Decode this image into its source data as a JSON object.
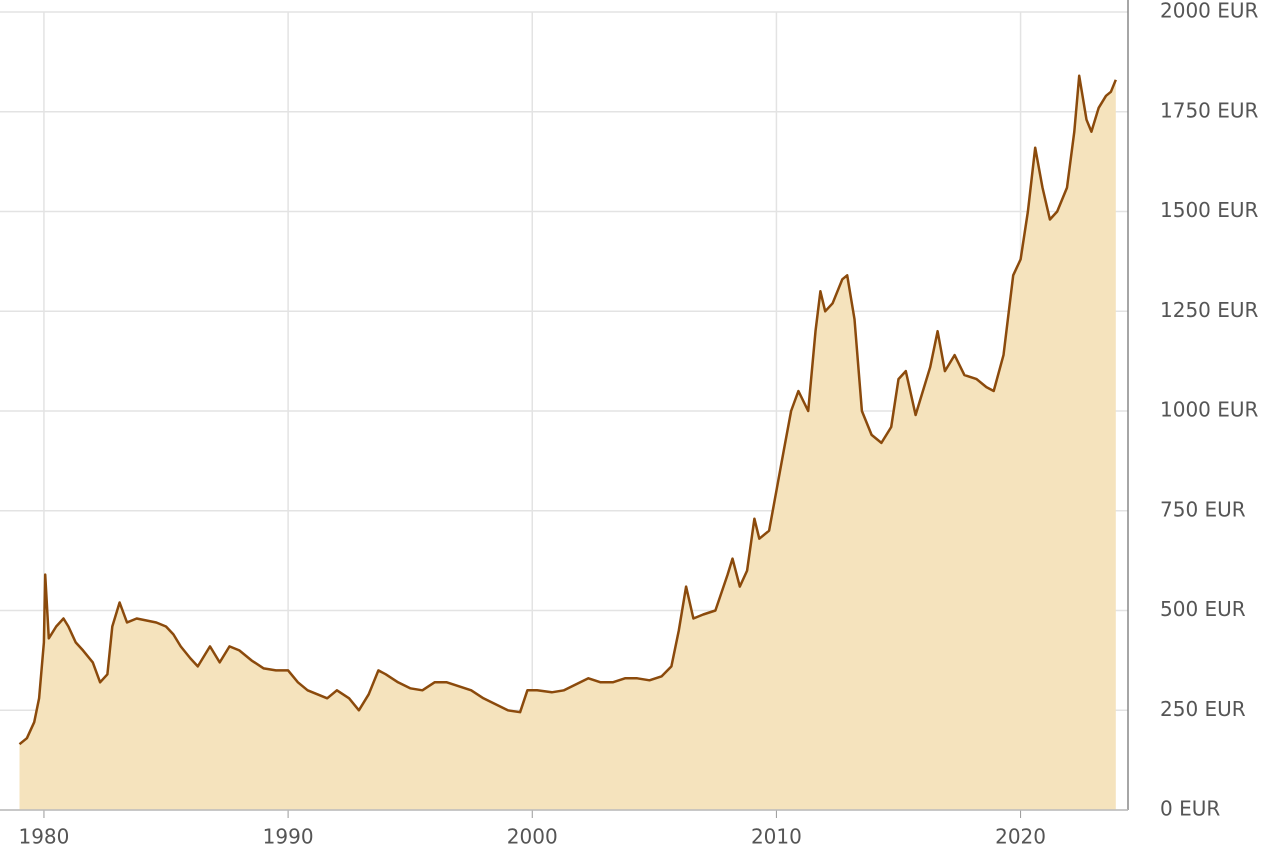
{
  "chart_data": {
    "type": "area",
    "x": [
      1979.0,
      1979.3,
      1979.6,
      1979.8,
      1980.0,
      1980.05,
      1980.2,
      1980.5,
      1980.8,
      1981.0,
      1981.3,
      1981.6,
      1982.0,
      1982.3,
      1982.6,
      1982.8,
      1983.1,
      1983.4,
      1983.8,
      1984.2,
      1984.6,
      1985.0,
      1985.3,
      1985.6,
      1986.0,
      1986.3,
      1986.8,
      1987.2,
      1987.6,
      1988.0,
      1988.5,
      1989.0,
      1989.5,
      1990.0,
      1990.4,
      1990.8,
      1991.2,
      1991.6,
      1992.0,
      1992.5,
      1992.9,
      1993.3,
      1993.7,
      1994.0,
      1994.5,
      1995.0,
      1995.5,
      1996.0,
      1996.5,
      1997.0,
      1997.5,
      1998.0,
      1998.5,
      1999.0,
      1999.5,
      1999.8,
      2000.2,
      2000.8,
      2001.3,
      2001.8,
      2002.3,
      2002.8,
      2003.3,
      2003.8,
      2004.3,
      2004.8,
      2005.3,
      2005.7,
      2006.0,
      2006.3,
      2006.6,
      2007.0,
      2007.5,
      2008.0,
      2008.2,
      2008.5,
      2008.8,
      2009.1,
      2009.3,
      2009.7,
      2010.0,
      2010.3,
      2010.6,
      2010.9,
      2011.3,
      2011.6,
      2011.8,
      2012.0,
      2012.3,
      2012.7,
      2012.9,
      2013.2,
      2013.5,
      2013.9,
      2014.3,
      2014.7,
      2015.0,
      2015.3,
      2015.7,
      2016.0,
      2016.3,
      2016.6,
      2016.9,
      2017.3,
      2017.7,
      2018.2,
      2018.6,
      2018.9,
      2019.3,
      2019.7,
      2020.0,
      2020.3,
      2020.6,
      2020.9,
      2021.2,
      2021.5,
      2021.9,
      2022.2,
      2022.4,
      2022.7,
      2022.9,
      2023.2,
      2023.5,
      2023.7,
      2023.9
    ],
    "values": [
      165,
      180,
      220,
      280,
      420,
      590,
      430,
      460,
      480,
      460,
      420,
      400,
      370,
      320,
      340,
      460,
      520,
      470,
      480,
      475,
      470,
      460,
      440,
      410,
      380,
      360,
      410,
      370,
      410,
      400,
      375,
      355,
      350,
      350,
      320,
      300,
      290,
      280,
      300,
      280,
      250,
      290,
      350,
      340,
      320,
      305,
      300,
      320,
      320,
      310,
      300,
      280,
      265,
      250,
      245,
      300,
      300,
      295,
      300,
      315,
      330,
      320,
      320,
      330,
      330,
      325,
      335,
      360,
      450,
      560,
      480,
      490,
      500,
      590,
      630,
      560,
      600,
      730,
      680,
      700,
      800,
      900,
      1000,
      1050,
      1000,
      1200,
      1300,
      1250,
      1270,
      1330,
      1340,
      1230,
      1000,
      940,
      920,
      960,
      1080,
      1100,
      990,
      1050,
      1110,
      1200,
      1100,
      1140,
      1090,
      1080,
      1060,
      1050,
      1140,
      1340,
      1380,
      1500,
      1660,
      1560,
      1480,
      1500,
      1560,
      1700,
      1840,
      1730,
      1700,
      1760,
      1790,
      1800,
      1830
    ],
    "color": "#8b4a0c",
    "fill_color": "#f5e3bd",
    "xlim": [
      1978.2,
      2024.4
    ],
    "xticks": [
      1980,
      1990,
      2000,
      2010,
      2020
    ],
    "ylim": [
      0,
      2000
    ],
    "yticks": [
      {
        "value": 0,
        "label": "0 EUR"
      },
      {
        "value": 250,
        "label": "250 EUR"
      },
      {
        "value": 500,
        "label": "500 EUR"
      },
      {
        "value": 750,
        "label": "750 EUR"
      },
      {
        "value": 1000,
        "label": "1000 EUR"
      },
      {
        "value": 1250,
        "label": "1250 EUR"
      },
      {
        "value": 1500,
        "label": "1500 EUR"
      },
      {
        "value": 1750,
        "label": "1750 EUR"
      },
      {
        "value": 2000,
        "label": "2000 EUR"
      }
    ],
    "grid": true
  }
}
